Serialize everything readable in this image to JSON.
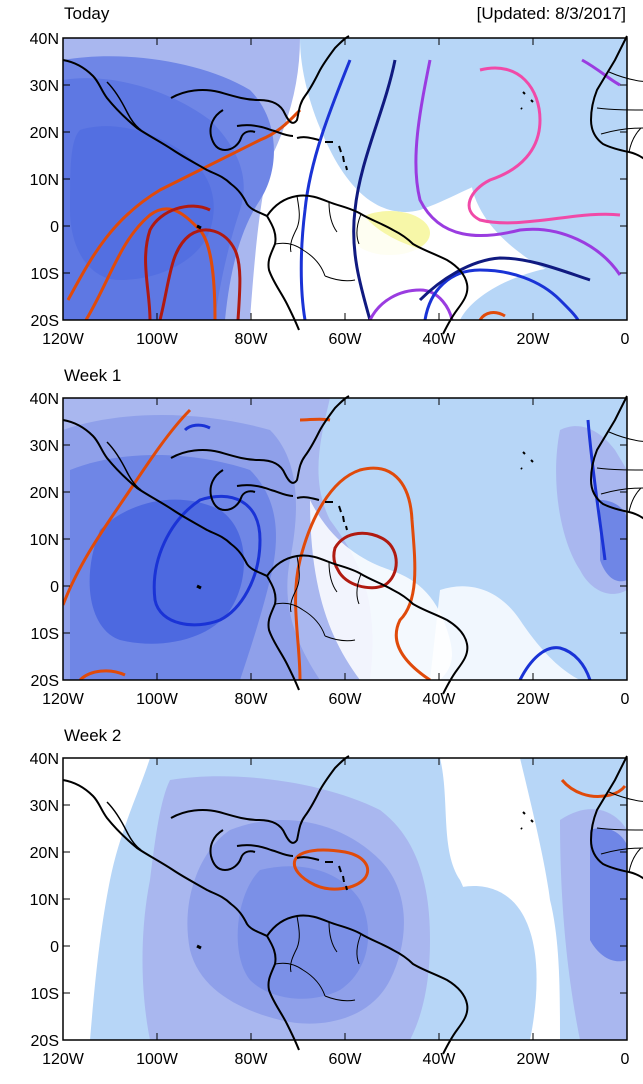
{
  "panels": [
    {
      "title": "Today",
      "updated": "[Updated: 8/3/2017]"
    },
    {
      "title": "Week 1"
    },
    {
      "title": "Week 2"
    }
  ],
  "axes": {
    "lat_labels": [
      "40N",
      "30N",
      "20N",
      "10N",
      "0",
      "10S",
      "20S"
    ],
    "lon_labels": [
      "120W",
      "100W",
      "80W",
      "60W",
      "40W",
      "20W",
      "0"
    ]
  },
  "colors": {
    "shade_light": "#b7d6f7",
    "shade_medium": "#a9b7ef",
    "shade_strong": "#6f86e6",
    "shade_strongest": "#4d69e0",
    "positive_shade": "#f7f7a8",
    "contour_orange": "#e04a0a",
    "contour_darkred": "#b01a10",
    "contour_blue": "#1a33d6",
    "contour_navy": "#101a80",
    "contour_purple": "#9a3ce0",
    "contour_pink": "#f04aa8"
  }
}
